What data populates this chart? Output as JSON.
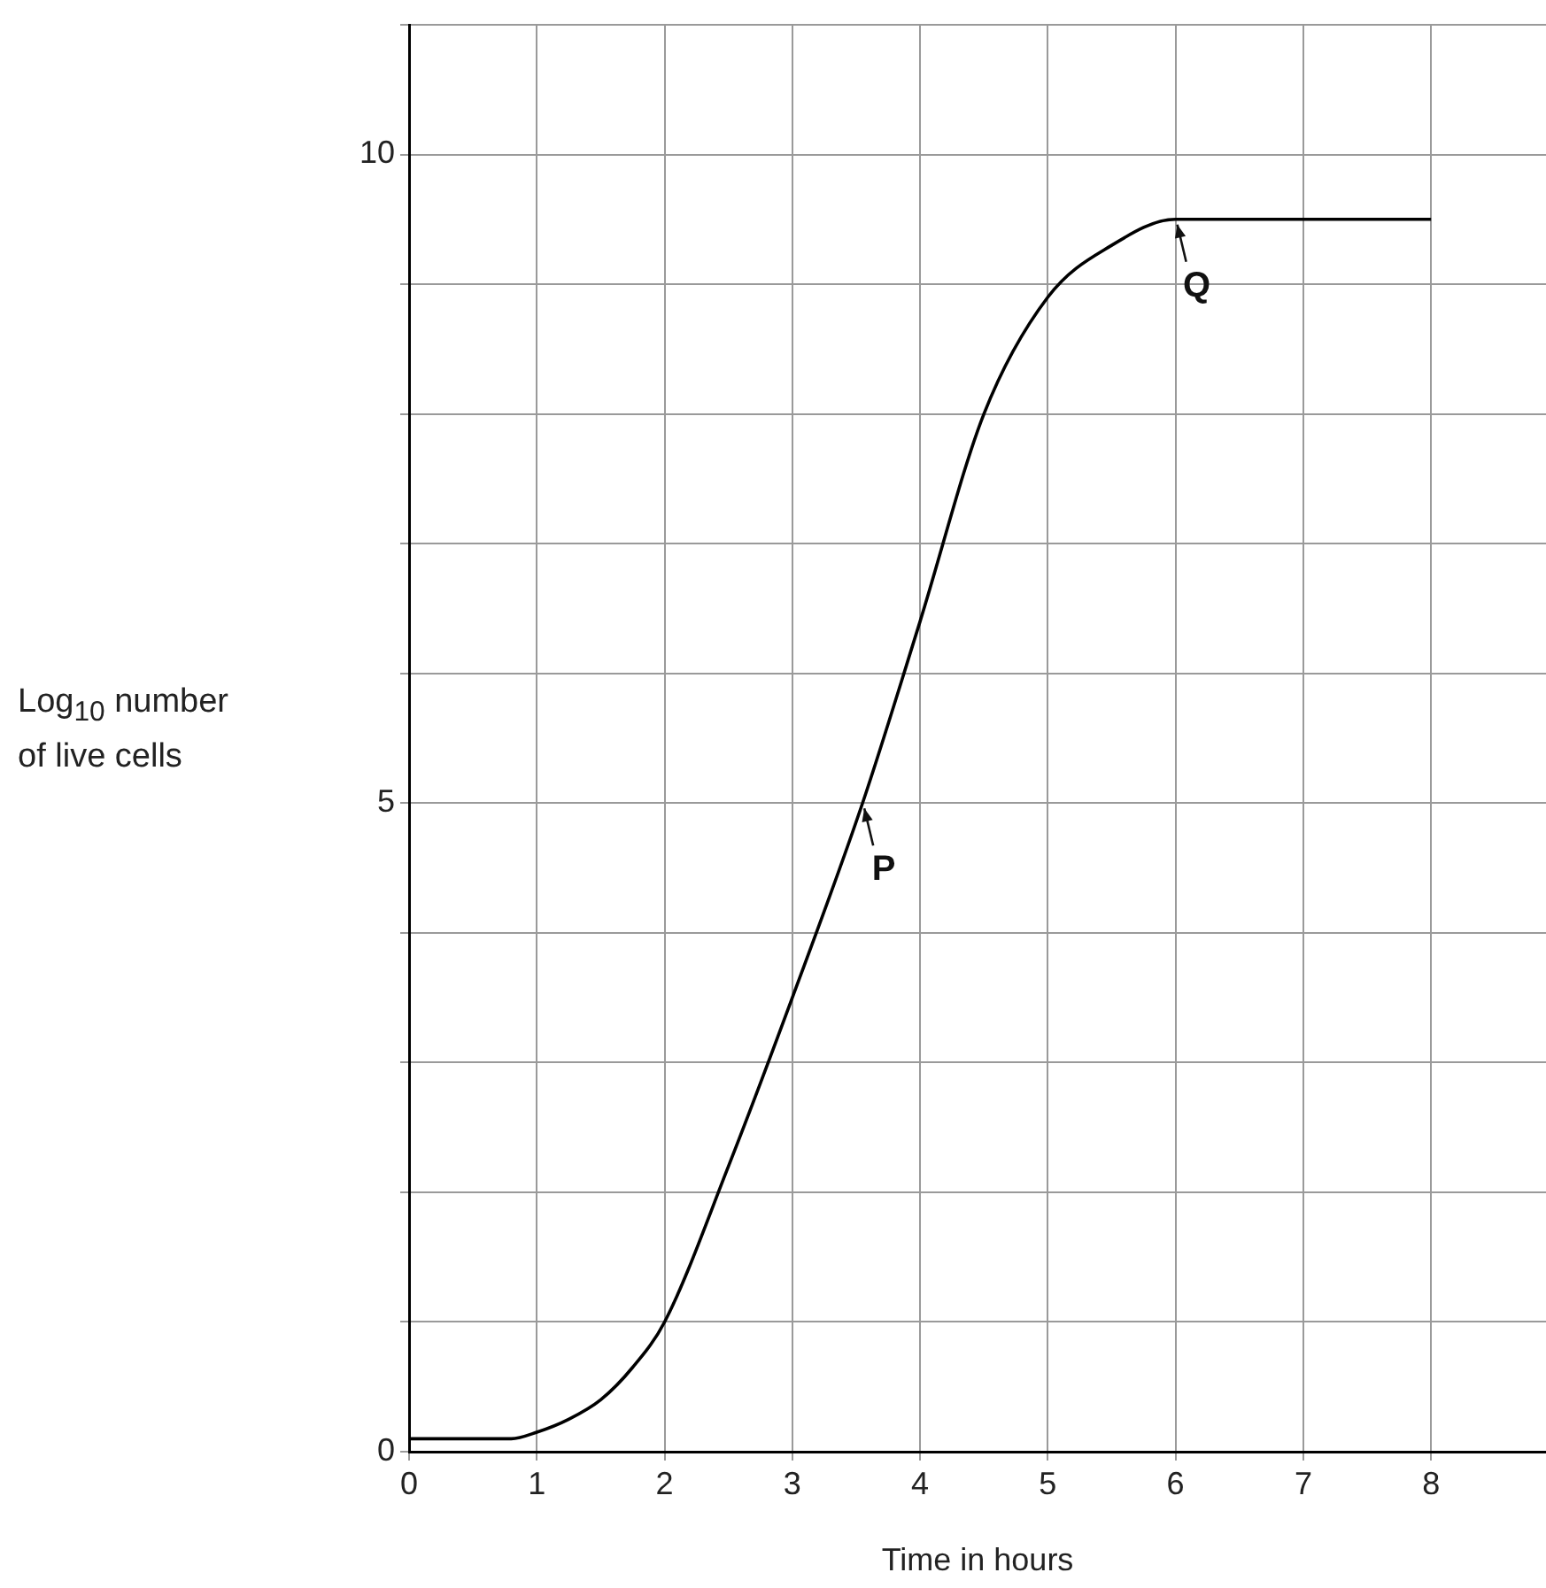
{
  "chart_data": {
    "type": "line",
    "xlabel": "Time in hours",
    "ylabel": "Log$_{10}$ number of live cells",
    "x": [
      0,
      0.8,
      1,
      1.25,
      1.5,
      1.75,
      2,
      2.5,
      3,
      3.55,
      4,
      4.5,
      5,
      5.5,
      6,
      7,
      8
    ],
    "series": [
      {
        "color": "#000000",
        "values": [
          0.1,
          0.1,
          0.15,
          0.25,
          0.4,
          0.65,
          1.0,
          2.2,
          3.5,
          5.0,
          6.4,
          8.0,
          8.9,
          9.3,
          9.5,
          9.5,
          9.5
        ]
      }
    ],
    "xlim": [
      0,
      8.9
    ],
    "xticks": [
      0,
      1,
      2,
      3,
      4,
      5,
      6,
      7,
      8
    ],
    "ylim": [
      0,
      11
    ],
    "yticks": [
      0,
      {
        "value": 1,
        "label": null
      },
      {
        "value": 2,
        "label": null
      },
      {
        "value": 3,
        "label": null
      },
      {
        "value": 4,
        "label": null
      },
      5,
      {
        "value": 6,
        "label": null
      },
      {
        "value": 7,
        "label": null
      },
      {
        "value": 8,
        "label": null
      },
      {
        "value": 9,
        "label": null
      },
      10,
      {
        "value": 11,
        "label": null
      }
    ],
    "grid": true,
    "legend": false,
    "marker": "none",
    "line_style": "solid",
    "annotations": [
      {
        "text": "P",
        "x": 3.55,
        "y": 5.0
      },
      {
        "text": "Q",
        "x": 6,
        "y": 9.5
      }
    ]
  }
}
